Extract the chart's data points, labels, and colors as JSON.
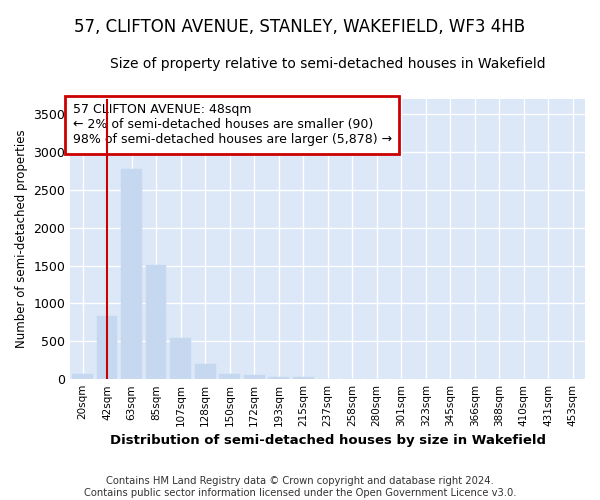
{
  "title": "57, CLIFTON AVENUE, STANLEY, WAKEFIELD, WF3 4HB",
  "subtitle": "Size of property relative to semi-detached houses in Wakefield",
  "xlabel": "Distribution of semi-detached houses by size in Wakefield",
  "ylabel": "Number of semi-detached properties",
  "footnote": "Contains HM Land Registry data © Crown copyright and database right 2024.\nContains public sector information licensed under the Open Government Licence v3.0.",
  "bar_color": "#c5d8f0",
  "bar_edge_color": "#c5d8f0",
  "vline_color": "#cc0000",
  "vline_x": 1,
  "annotation_text": "57 CLIFTON AVENUE: 48sqm\n← 2% of semi-detached houses are smaller (90)\n98% of semi-detached houses are larger (5,878) →",
  "annotation_box_color": "#cc0000",
  "categories": [
    "20sqm",
    "42sqm",
    "63sqm",
    "85sqm",
    "107sqm",
    "128sqm",
    "150sqm",
    "172sqm",
    "193sqm",
    "215sqm",
    "237sqm",
    "258sqm",
    "280sqm",
    "301sqm",
    "323sqm",
    "345sqm",
    "366sqm",
    "388sqm",
    "410sqm",
    "431sqm",
    "453sqm"
  ],
  "values": [
    70,
    830,
    2780,
    1505,
    550,
    195,
    75,
    50,
    35,
    30,
    0,
    0,
    0,
    0,
    0,
    0,
    0,
    0,
    0,
    0,
    0
  ],
  "ylim": [
    0,
    3700
  ],
  "yticks": [
    0,
    500,
    1000,
    1500,
    2000,
    2500,
    3000,
    3500
  ],
  "background_color": "#ffffff",
  "plot_background_color": "#dce8f8",
  "grid_color": "#ffffff",
  "title_fontsize": 12,
  "subtitle_fontsize": 10,
  "annotation_fontsize": 9
}
